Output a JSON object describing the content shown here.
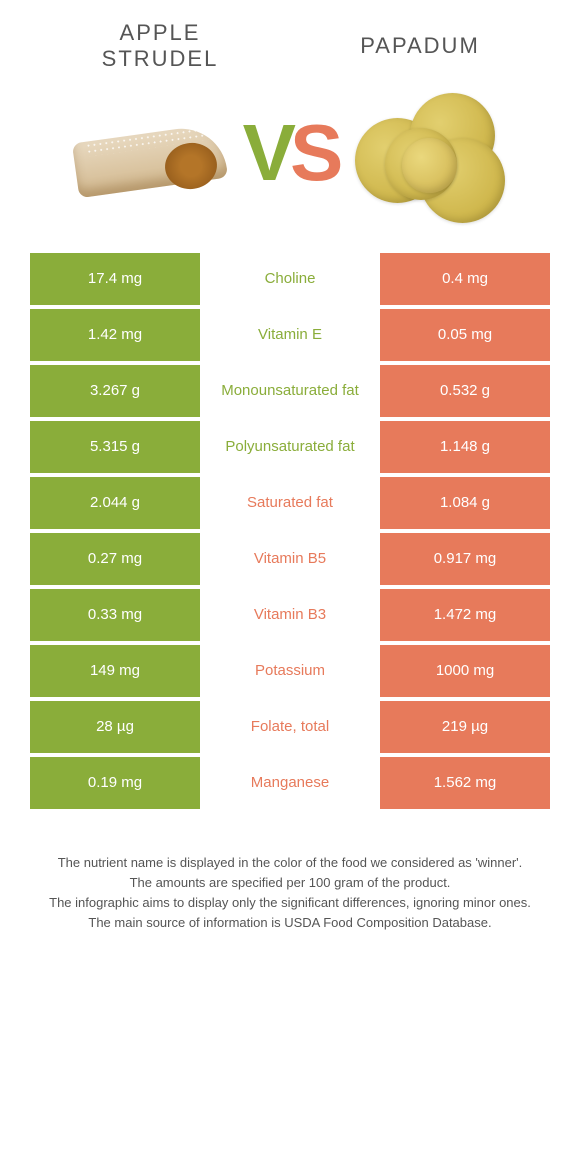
{
  "food1": {
    "title_line1": "APPLE",
    "title_line2": "STRUDEL",
    "color": "#8aad3a"
  },
  "food2": {
    "title_line1": "PAPADUM",
    "color": "#e77a5b"
  },
  "vs": {
    "v": "V",
    "s": "S"
  },
  "rows": [
    {
      "left": "17.4 mg",
      "mid": "Choline",
      "right": "0.4 mg",
      "winner": "g"
    },
    {
      "left": "1.42 mg",
      "mid": "Vitamin E",
      "right": "0.05 mg",
      "winner": "g"
    },
    {
      "left": "3.267 g",
      "mid": "Monounsaturated fat",
      "right": "0.532 g",
      "winner": "g"
    },
    {
      "left": "5.315 g",
      "mid": "Polyunsaturated fat",
      "right": "1.148 g",
      "winner": "g"
    },
    {
      "left": "2.044 g",
      "mid": "Saturated fat",
      "right": "1.084 g",
      "winner": "o"
    },
    {
      "left": "0.27 mg",
      "mid": "Vitamin B5",
      "right": "0.917 mg",
      "winner": "o"
    },
    {
      "left": "0.33 mg",
      "mid": "Vitamin B3",
      "right": "1.472 mg",
      "winner": "o"
    },
    {
      "left": "149 mg",
      "mid": "Potassium",
      "right": "1000 mg",
      "winner": "o"
    },
    {
      "left": "28 µg",
      "mid": "Folate, total",
      "right": "219 µg",
      "winner": "o"
    },
    {
      "left": "0.19 mg",
      "mid": "Manganese",
      "right": "1.562 mg",
      "winner": "o"
    }
  ],
  "footer": {
    "l1": "The nutrient name is displayed in the color of the food we considered as 'winner'.",
    "l2": "The amounts are specified per 100 gram of the product.",
    "l3": "The infographic aims to display only the significant differences, ignoring minor ones.",
    "l4": "The main source of information is USDA Food Composition Database."
  }
}
